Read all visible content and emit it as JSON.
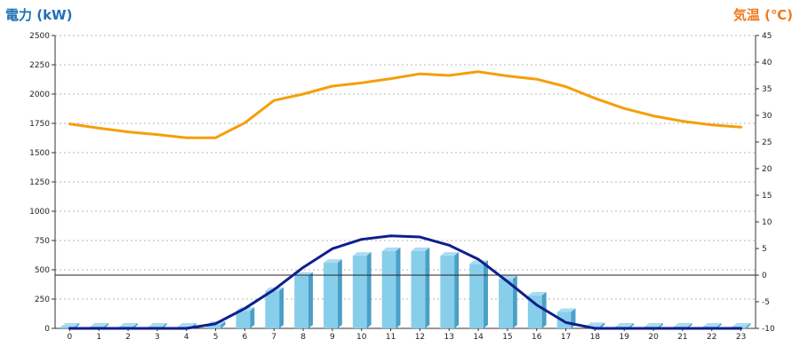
{
  "chart_data": {
    "type": "bar",
    "title_left": "電力 (kW)",
    "title_right": "気温 (℃)",
    "x": [
      0,
      1,
      2,
      3,
      4,
      5,
      6,
      7,
      8,
      9,
      10,
      11,
      12,
      13,
      14,
      15,
      16,
      17,
      18,
      19,
      20,
      21,
      22,
      23
    ],
    "x_ticks": [
      "0",
      "1",
      "2",
      "3",
      "4",
      "5",
      "6",
      "7",
      "8",
      "9",
      "10",
      "11",
      "12",
      "13",
      "14",
      "15",
      "16",
      "17",
      "18",
      "19",
      "20",
      "21",
      "22",
      "23"
    ],
    "y_left": {
      "ylim": [
        0,
        2500
      ],
      "ticks": [
        "0",
        "250",
        "500",
        "750",
        "1000",
        "1250",
        "1500",
        "1750",
        "2000",
        "2250",
        "2500"
      ]
    },
    "y_right": {
      "ylim": [
        -10,
        45
      ],
      "ticks": [
        "-10",
        "-5",
        "0",
        "5",
        "10",
        "15",
        "20",
        "25",
        "30",
        "35",
        "40",
        "45"
      ]
    },
    "grid": true,
    "series": [
      {
        "kind": "bar",
        "axis": "left",
        "color": "#87ceeb",
        "values": [
          15,
          15,
          15,
          15,
          15,
          30,
          150,
          320,
          450,
          560,
          620,
          660,
          660,
          620,
          550,
          420,
          280,
          140,
          20,
          15,
          15,
          15,
          15,
          15
        ]
      },
      {
        "kind": "line",
        "axis": "left",
        "color": "#0f1f8c",
        "values": [
          0,
          0,
          0,
          0,
          0,
          40,
          170,
          330,
          520,
          680,
          760,
          790,
          780,
          710,
          590,
          400,
          200,
          50,
          0,
          0,
          0,
          0,
          0,
          0
        ]
      },
      {
        "kind": "line",
        "axis": "right",
        "color": "#f59e0b",
        "values": [
          28.4,
          27.6,
          26.9,
          26.4,
          25.8,
          25.8,
          28.6,
          32.8,
          34.0,
          35.5,
          36.1,
          36.9,
          37.8,
          37.5,
          38.2,
          37.4,
          36.8,
          35.4,
          33.2,
          31.3,
          29.9,
          28.9,
          28.2,
          27.8
        ]
      }
    ]
  }
}
